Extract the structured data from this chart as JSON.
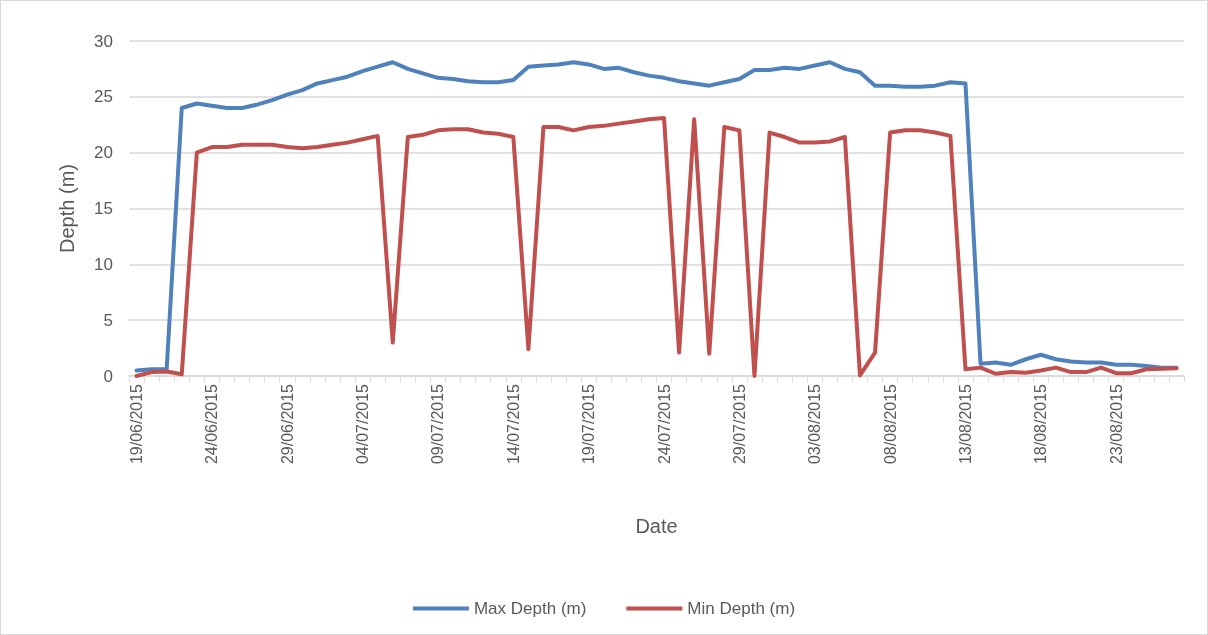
{
  "chart_data": {
    "type": "line",
    "xlabel": "Date",
    "ylabel": "Depth (m)",
    "categories": [
      "19/06/2015",
      null,
      null,
      null,
      null,
      "24/06/2015",
      null,
      null,
      null,
      null,
      "29/06/2015",
      null,
      null,
      null,
      null,
      "04/07/2015",
      null,
      null,
      null,
      null,
      "09/07/2015",
      null,
      null,
      null,
      null,
      "14/07/2015",
      null,
      null,
      null,
      null,
      "19/07/2015",
      null,
      null,
      null,
      null,
      "24/07/2015",
      null,
      null,
      null,
      null,
      "29/07/2015",
      null,
      null,
      null,
      null,
      "03/08/2015",
      null,
      null,
      null,
      null,
      "08/08/2015",
      null,
      null,
      null,
      null,
      "13/08/2015",
      null,
      null,
      null,
      null,
      "18/08/2015",
      null,
      null,
      null,
      null,
      "23/08/2015",
      null,
      null,
      null,
      null
    ],
    "series": [
      {
        "name": "Max Depth (m)",
        "color": "#4f81bd",
        "values": [
          0.5,
          0.6,
          0.6,
          24.0,
          24.4,
          24.2,
          24.0,
          24.0,
          24.3,
          24.7,
          25.2,
          25.6,
          26.2,
          26.5,
          26.8,
          27.3,
          27.7,
          28.1,
          27.5,
          27.1,
          26.7,
          26.6,
          26.4,
          26.3,
          26.3,
          26.5,
          27.7,
          27.8,
          27.9,
          28.1,
          27.9,
          27.5,
          27.6,
          27.2,
          26.9,
          26.7,
          26.4,
          26.2,
          26.0,
          26.3,
          26.6,
          27.4,
          27.4,
          27.6,
          27.5,
          27.8,
          28.1,
          27.5,
          27.2,
          26.0,
          26.0,
          25.9,
          25.9,
          26.0,
          26.3,
          26.2,
          1.1,
          1.2,
          1.0,
          1.5,
          1.9,
          1.5,
          1.3,
          1.2,
          1.2,
          1.0,
          1.0,
          0.9,
          0.75,
          0.75
        ]
      },
      {
        "name": "Min Depth (m)",
        "color": "#c0504d",
        "values": [
          0.0,
          0.35,
          0.4,
          0.15,
          20.0,
          20.5,
          20.5,
          20.7,
          20.7,
          20.7,
          20.5,
          20.4,
          20.5,
          20.7,
          20.9,
          21.2,
          21.5,
          3.0,
          21.4,
          21.6,
          22.0,
          22.1,
          22.1,
          21.8,
          21.7,
          21.4,
          2.4,
          22.3,
          22.3,
          22.0,
          22.3,
          22.4,
          22.6,
          22.8,
          23.0,
          23.1,
          2.1,
          23.0,
          2.0,
          22.3,
          22.0,
          0.0,
          21.8,
          21.4,
          20.9,
          20.9,
          21.0,
          21.4,
          0.05,
          2.1,
          21.8,
          22.0,
          22.0,
          21.8,
          21.5,
          0.6,
          0.75,
          0.2,
          0.35,
          0.3,
          0.5,
          0.75,
          0.35,
          0.35,
          0.75,
          0.25,
          0.25,
          0.6,
          0.65,
          0.7
        ]
      }
    ],
    "ylim": [
      0,
      30
    ],
    "yticks": [
      0,
      5,
      10,
      15,
      20,
      25,
      30
    ],
    "grid": "y",
    "legend": "bottom",
    "marker": "none",
    "line_style": "solid"
  }
}
